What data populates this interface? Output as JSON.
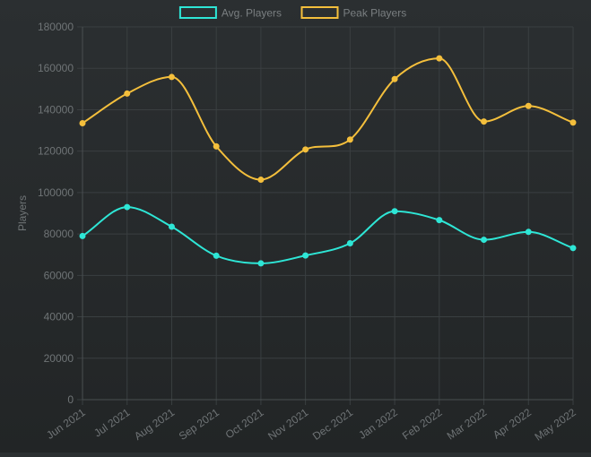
{
  "chart_data": {
    "type": "line",
    "categories": [
      "Jun 2021",
      "Jul 2021",
      "Aug 2021",
      "Sep 2021",
      "Oct 2021",
      "Nov 2021",
      "Dec 2021",
      "Jan 2022",
      "Feb 2022",
      "Mar 2022",
      "Apr 2022",
      "May 2022"
    ],
    "series": [
      {
        "name": "Avg. Players",
        "color": "#2ee6d6",
        "values": [
          79000,
          93000,
          83500,
          69500,
          65800,
          69600,
          75500,
          91000,
          86700,
          77200,
          81000,
          73200
        ]
      },
      {
        "name": "Peak Players",
        "color": "#f4bf3c",
        "values": [
          133500,
          147800,
          155800,
          122300,
          106200,
          120800,
          125600,
          154800,
          164800,
          134300,
          141800,
          133800
        ]
      }
    ],
    "ylabel": "Players",
    "ylim": [
      0,
      180000
    ],
    "yticks": [
      "0",
      "20000",
      "40000",
      "60000",
      "80000",
      "100000",
      "120000",
      "140000",
      "160000",
      "180000"
    ],
    "grid": true,
    "legend_position": "top-center"
  }
}
